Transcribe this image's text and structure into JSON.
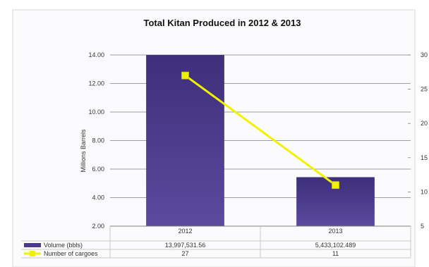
{
  "chart_data": {
    "type": "bar",
    "title": "Total Kitan Produced in 2012 & 2013",
    "ylabel": "Millions Barrels",
    "ylim": [
      2,
      14
    ],
    "y_ticks": [
      "14.00",
      "12.00",
      "10.00",
      "8.00",
      "6.00",
      "4.00",
      "2.00"
    ],
    "y2lim": [
      5,
      30
    ],
    "y2_ticks": [
      "30",
      "25",
      "20",
      "15",
      "10",
      "5"
    ],
    "categories": [
      "2012",
      "2013"
    ],
    "series": [
      {
        "name": "Volume (bbls)",
        "type": "bar",
        "axis": "left",
        "values": [
          13.997531,
          5.433102
        ],
        "table_values": [
          "13,997,531.56",
          "5,433,102.489"
        ],
        "color": "#4b3a8c"
      },
      {
        "name": "Number of cargoes",
        "type": "line",
        "axis": "right",
        "values": [
          27,
          11
        ],
        "table_values": [
          "27",
          "11"
        ],
        "color": "#f2f200"
      }
    ],
    "grid": true,
    "legend": "data-table"
  }
}
